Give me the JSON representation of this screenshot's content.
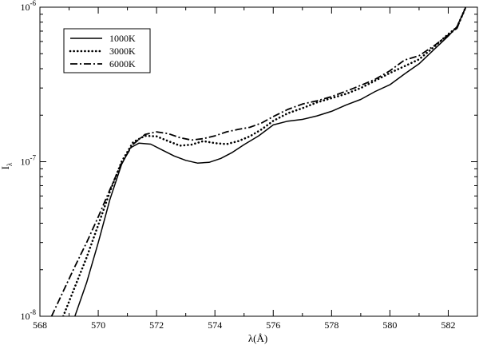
{
  "chart_data": {
    "type": "line",
    "xlabel": "λ(Å)",
    "ylabel": "I",
    "ylabel_sub": "λ",
    "xlim": [
      568,
      583
    ],
    "ylim": [
      1e-08,
      1e-06
    ],
    "yscale": "log",
    "grid": false,
    "legend_position": "top-left",
    "x_ticks": [
      {
        "value": 568,
        "label": "568"
      },
      {
        "value": 570,
        "label": "570"
      },
      {
        "value": 572,
        "label": "572"
      },
      {
        "value": 574,
        "label": "574"
      },
      {
        "value": 576,
        "label": "576"
      },
      {
        "value": 578,
        "label": "578"
      },
      {
        "value": 580,
        "label": "580"
      },
      {
        "value": 582,
        "label": "582"
      }
    ],
    "y_ticks": [
      {
        "value": 1e-08,
        "base": "10",
        "exp": "-8"
      },
      {
        "value": 1e-07,
        "base": "10",
        "exp": "-7"
      },
      {
        "value": 1e-06,
        "base": "10",
        "exp": "-6"
      }
    ],
    "series": [
      {
        "name": "1000K",
        "style": "solid",
        "x": [
          569.2,
          569.6,
          570.0,
          570.4,
          570.8,
          571.1,
          571.4,
          571.8,
          572.2,
          572.6,
          573.0,
          573.4,
          573.8,
          574.2,
          574.6,
          575.0,
          575.5,
          576.0,
          576.5,
          577.0,
          577.5,
          578.0,
          578.5,
          579.0,
          579.5,
          580.0,
          580.5,
          581.0,
          581.5,
          582.0,
          582.3,
          582.6
        ],
        "y": [
          1e-08,
          1.65e-08,
          3e-08,
          5.7e-08,
          9.6e-08,
          1.23e-07,
          1.32e-07,
          1.3e-07,
          1.19e-07,
          1.09e-07,
          1.02e-07,
          9.8e-08,
          9.9e-08,
          1.05e-07,
          1.15e-07,
          1.29e-07,
          1.47e-07,
          1.73e-07,
          1.83e-07,
          1.88e-07,
          1.98e-07,
          2.12e-07,
          2.33e-07,
          2.53e-07,
          2.85e-07,
          3.15e-07,
          3.7e-07,
          4.3e-07,
          5.3e-07,
          6.5e-07,
          7.5e-07,
          1e-06
        ]
      },
      {
        "name": "3000K",
        "style": "dotted",
        "x": [
          568.8,
          569.2,
          569.6,
          570.0,
          570.4,
          570.8,
          571.2,
          571.6,
          572.0,
          572.4,
          572.8,
          573.2,
          573.6,
          574.0,
          574.4,
          574.8,
          575.2,
          575.6,
          576.0,
          576.5,
          577.0,
          577.5,
          578.0,
          578.5,
          579.0,
          579.5,
          580.0,
          580.5,
          581.0,
          581.5,
          582.0,
          582.3,
          582.6
        ],
        "y": [
          1e-08,
          1.55e-08,
          2.4e-08,
          3.9e-08,
          6.4e-08,
          1e-07,
          1.34e-07,
          1.47e-07,
          1.46e-07,
          1.36e-07,
          1.27e-07,
          1.29e-07,
          1.36e-07,
          1.32e-07,
          1.3e-07,
          1.36e-07,
          1.46e-07,
          1.62e-07,
          1.84e-07,
          2.06e-07,
          2.22e-07,
          2.42e-07,
          2.58e-07,
          2.75e-07,
          3e-07,
          3.35e-07,
          3.75e-07,
          4.15e-07,
          4.6e-07,
          5.5e-07,
          6.7e-07,
          7.4e-07,
          1e-06
        ]
      },
      {
        "name": "6000K",
        "style": "dash-dot",
        "x": [
          568.4,
          568.8,
          569.2,
          569.6,
          570.0,
          570.4,
          570.8,
          571.2,
          571.6,
          572.0,
          572.4,
          572.8,
          573.2,
          573.6,
          574.0,
          574.4,
          574.8,
          575.2,
          575.6,
          576.0,
          576.5,
          577.0,
          577.5,
          578.0,
          578.5,
          579.0,
          579.5,
          580.0,
          580.5,
          581.0,
          581.5,
          582.0,
          582.3,
          582.6
        ],
        "y": [
          1e-08,
          1.45e-08,
          2.1e-08,
          3e-08,
          4.4e-08,
          6.6e-08,
          9.8e-08,
          1.3e-07,
          1.5e-07,
          1.56e-07,
          1.52e-07,
          1.43e-07,
          1.38e-07,
          1.41e-07,
          1.47e-07,
          1.56e-07,
          1.62e-07,
          1.67e-07,
          1.78e-07,
          1.96e-07,
          2.18e-07,
          2.36e-07,
          2.48e-07,
          2.64e-07,
          2.86e-07,
          3.12e-07,
          3.42e-07,
          3.88e-07,
          4.55e-07,
          4.85e-07,
          5.6e-07,
          6.6e-07,
          7.3e-07,
          1e-06
        ]
      }
    ]
  }
}
